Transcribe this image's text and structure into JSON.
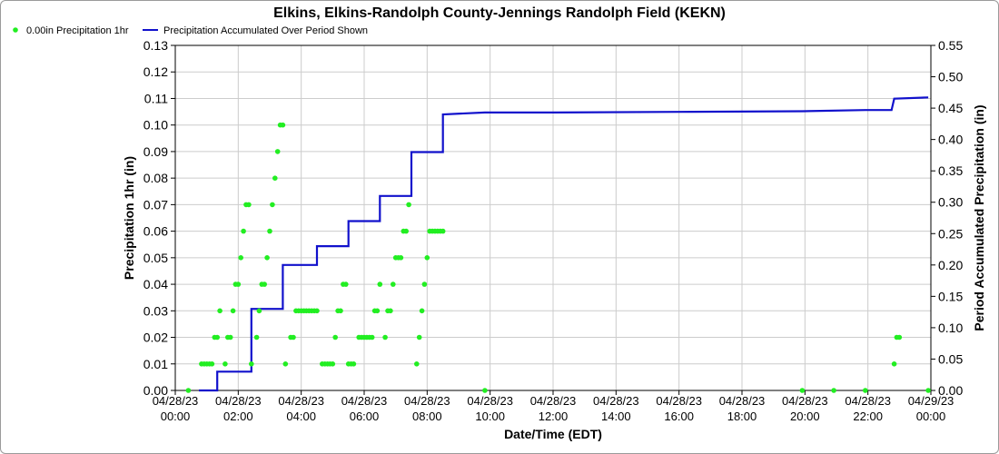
{
  "chart_data": {
    "type": "scatter",
    "title": "Elkins, Elkins-Randolph County-Jennings Randolph Field (KEKN)",
    "xlabel": "Date/Time (EDT)",
    "ylabel": "Precipitation 1hr (in)",
    "ylabel_right": "Period Accumulated Precipitation (in)",
    "xlim": [
      "04/28/23 00:00",
      "04/29/23 00:00"
    ],
    "ylim": [
      0,
      0.13
    ],
    "ylim_right": [
      0,
      0.55
    ],
    "grid": true,
    "legend_placement": "top-left",
    "x_ticks": [
      {
        "date": "04/28/23",
        "time": "00:00"
      },
      {
        "date": "04/28/23",
        "time": "02:00"
      },
      {
        "date": "04/28/23",
        "time": "04:00"
      },
      {
        "date": "04/28/23",
        "time": "06:00"
      },
      {
        "date": "04/28/23",
        "time": "08:00"
      },
      {
        "date": "04/28/23",
        "time": "10:00"
      },
      {
        "date": "04/28/23",
        "time": "12:00"
      },
      {
        "date": "04/28/23",
        "time": "14:00"
      },
      {
        "date": "04/28/23",
        "time": "16:00"
      },
      {
        "date": "04/28/23",
        "time": "18:00"
      },
      {
        "date": "04/28/23",
        "time": "20:00"
      },
      {
        "date": "04/28/23",
        "time": "22:00"
      },
      {
        "date": "04/29/23",
        "time": "00:00"
      }
    ],
    "y_ticks": [
      "0.00",
      "0.01",
      "0.02",
      "0.03",
      "0.04",
      "0.05",
      "0.06",
      "0.07",
      "0.08",
      "0.09",
      "0.10",
      "0.11",
      "0.12",
      "0.13"
    ],
    "y_ticks_right": [
      "0.00",
      "0.05",
      "0.10",
      "0.15",
      "0.20",
      "0.25",
      "0.30",
      "0.35",
      "0.40",
      "0.45",
      "0.50",
      "0.55"
    ],
    "series": [
      {
        "name": "0.00in Precipitation 1hr",
        "color": "#22ee22",
        "kind": "points",
        "points": [
          [
            "04/28/23 00:25",
            0.0
          ],
          [
            "04/28/23 00:50",
            0.01
          ],
          [
            "04/28/23 00:55",
            0.01
          ],
          [
            "04/28/23 01:00",
            0.01
          ],
          [
            "04/28/23 01:05",
            0.01
          ],
          [
            "04/28/23 01:10",
            0.01
          ],
          [
            "04/28/23 01:15",
            0.02
          ],
          [
            "04/28/23 01:20",
            0.02
          ],
          [
            "04/28/23 01:25",
            0.03
          ],
          [
            "04/28/23 01:35",
            0.01
          ],
          [
            "04/28/23 01:40",
            0.02
          ],
          [
            "04/28/23 01:45",
            0.02
          ],
          [
            "04/28/23 01:50",
            0.03
          ],
          [
            "04/28/23 01:55",
            0.04
          ],
          [
            "04/28/23 02:00",
            0.04
          ],
          [
            "04/28/23 02:05",
            0.05
          ],
          [
            "04/28/23 02:10",
            0.06
          ],
          [
            "04/28/23 02:15",
            0.07
          ],
          [
            "04/28/23 02:20",
            0.07
          ],
          [
            "04/28/23 02:25",
            0.01
          ],
          [
            "04/28/23 02:35",
            0.02
          ],
          [
            "04/28/23 02:40",
            0.03
          ],
          [
            "04/28/23 02:45",
            0.04
          ],
          [
            "04/28/23 02:50",
            0.04
          ],
          [
            "04/28/23 02:55",
            0.05
          ],
          [
            "04/28/23 03:00",
            0.06
          ],
          [
            "04/28/23 03:05",
            0.07
          ],
          [
            "04/28/23 03:10",
            0.08
          ],
          [
            "04/28/23 03:15",
            0.09
          ],
          [
            "04/28/23 03:20",
            0.1
          ],
          [
            "04/28/23 03:25",
            0.1
          ],
          [
            "04/28/23 03:30",
            0.01
          ],
          [
            "04/28/23 03:40",
            0.02
          ],
          [
            "04/28/23 03:45",
            0.02
          ],
          [
            "04/28/23 03:50",
            0.03
          ],
          [
            "04/28/23 03:55",
            0.03
          ],
          [
            "04/28/23 04:00",
            0.03
          ],
          [
            "04/28/23 04:05",
            0.03
          ],
          [
            "04/28/23 04:10",
            0.03
          ],
          [
            "04/28/23 04:15",
            0.03
          ],
          [
            "04/28/23 04:20",
            0.03
          ],
          [
            "04/28/23 04:25",
            0.03
          ],
          [
            "04/28/23 04:30",
            0.03
          ],
          [
            "04/28/23 04:40",
            0.01
          ],
          [
            "04/28/23 04:45",
            0.01
          ],
          [
            "04/28/23 04:50",
            0.01
          ],
          [
            "04/28/23 04:55",
            0.01
          ],
          [
            "04/28/23 05:00",
            0.01
          ],
          [
            "04/28/23 05:05",
            0.02
          ],
          [
            "04/28/23 05:10",
            0.03
          ],
          [
            "04/28/23 05:15",
            0.03
          ],
          [
            "04/28/23 05:20",
            0.04
          ],
          [
            "04/28/23 05:25",
            0.04
          ],
          [
            "04/28/23 05:30",
            0.01
          ],
          [
            "04/28/23 05:35",
            0.01
          ],
          [
            "04/28/23 05:40",
            0.01
          ],
          [
            "04/28/23 05:50",
            0.02
          ],
          [
            "04/28/23 05:55",
            0.02
          ],
          [
            "04/28/23 06:00",
            0.02
          ],
          [
            "04/28/23 06:05",
            0.02
          ],
          [
            "04/28/23 06:10",
            0.02
          ],
          [
            "04/28/23 06:15",
            0.02
          ],
          [
            "04/28/23 06:20",
            0.03
          ],
          [
            "04/28/23 06:25",
            0.03
          ],
          [
            "04/28/23 06:30",
            0.04
          ],
          [
            "04/28/23 06:40",
            0.02
          ],
          [
            "04/28/23 06:45",
            0.03
          ],
          [
            "04/28/23 06:50",
            0.03
          ],
          [
            "04/28/23 06:55",
            0.04
          ],
          [
            "04/28/23 07:00",
            0.05
          ],
          [
            "04/28/23 07:05",
            0.05
          ],
          [
            "04/28/23 07:10",
            0.05
          ],
          [
            "04/28/23 07:15",
            0.06
          ],
          [
            "04/28/23 07:20",
            0.06
          ],
          [
            "04/28/23 07:25",
            0.07
          ],
          [
            "04/28/23 07:40",
            0.01
          ],
          [
            "04/28/23 07:45",
            0.02
          ],
          [
            "04/28/23 07:50",
            0.03
          ],
          [
            "04/28/23 07:55",
            0.04
          ],
          [
            "04/28/23 08:00",
            0.05
          ],
          [
            "04/28/23 08:05",
            0.06
          ],
          [
            "04/28/23 08:10",
            0.06
          ],
          [
            "04/28/23 08:15",
            0.06
          ],
          [
            "04/28/23 08:20",
            0.06
          ],
          [
            "04/28/23 08:25",
            0.06
          ],
          [
            "04/28/23 08:30",
            0.06
          ],
          [
            "04/28/23 09:50",
            0.0
          ],
          [
            "04/28/23 19:55",
            0.0
          ],
          [
            "04/28/23 20:55",
            0.0
          ],
          [
            "04/28/23 21:55",
            0.0
          ],
          [
            "04/28/23 22:50",
            0.01
          ],
          [
            "04/28/23 22:55",
            0.02
          ],
          [
            "04/28/23 23:00",
            0.02
          ],
          [
            "04/28/23 23:55",
            0.0
          ]
        ]
      },
      {
        "name": "Precipitation Accumulated Over Period Shown",
        "color": "#1111cc",
        "kind": "line",
        "axis": "right",
        "points": [
          [
            "04/28/23 00:45",
            0.0
          ],
          [
            "04/28/23 01:20",
            0.0
          ],
          [
            "04/28/23 01:20",
            0.03
          ],
          [
            "04/28/23 02:25",
            0.03
          ],
          [
            "04/28/23 02:25",
            0.13
          ],
          [
            "04/28/23 03:25",
            0.13
          ],
          [
            "04/28/23 03:25",
            0.2
          ],
          [
            "04/28/23 04:30",
            0.2
          ],
          [
            "04/28/23 04:30",
            0.23
          ],
          [
            "04/28/23 05:30",
            0.23
          ],
          [
            "04/28/23 05:30",
            0.27
          ],
          [
            "04/28/23 06:30",
            0.27
          ],
          [
            "04/28/23 06:30",
            0.31
          ],
          [
            "04/28/23 07:30",
            0.31
          ],
          [
            "04/28/23 07:30",
            0.38
          ],
          [
            "04/28/23 08:30",
            0.38
          ],
          [
            "04/28/23 08:30",
            0.44
          ],
          [
            "04/28/23 09:50",
            0.443
          ],
          [
            "04/28/23 12:00",
            0.443
          ],
          [
            "04/28/23 16:00",
            0.444
          ],
          [
            "04/28/23 19:55",
            0.445
          ],
          [
            "04/28/23 21:55",
            0.447
          ],
          [
            "04/28/23 22:45",
            0.447
          ],
          [
            "04/28/23 22:50",
            0.465
          ],
          [
            "04/28/23 23:55",
            0.467
          ]
        ]
      }
    ]
  }
}
